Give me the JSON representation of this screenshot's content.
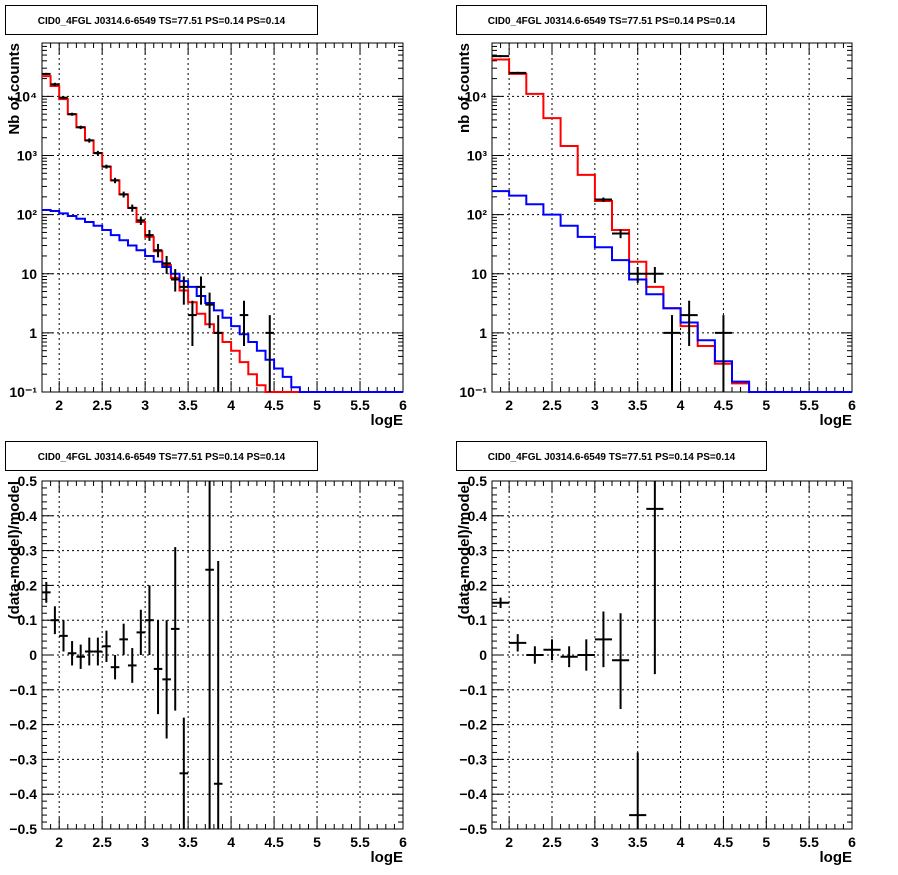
{
  "chart_data": [
    {
      "type": "step",
      "title": "CID0_4FGL J0314.6-6549 TS=77.51 PS=0.14 PS=0.14",
      "xlabel": "logE",
      "ylabel": "Nb of counts",
      "xlim": [
        1.8,
        6.0
      ],
      "ylim": [
        0.1,
        80000
      ],
      "yscale": "log",
      "grid": true,
      "xticks": [
        "2",
        "2.5",
        "3",
        "3.5",
        "4",
        "4.5",
        "5",
        "5.5",
        "6"
      ],
      "yticks": [
        "10⁻¹",
        "1",
        "10",
        "10²",
        "10³",
        "10⁴"
      ],
      "series": [
        {
          "color": "#ff0000",
          "style": "hist",
          "edges": [
            1.8,
            1.9,
            2.0,
            2.1,
            2.2,
            2.3,
            2.4,
            2.5,
            2.6,
            2.7,
            2.8,
            2.9,
            3.0,
            3.1,
            3.2,
            3.3,
            3.4,
            3.5,
            3.6,
            3.7,
            3.8,
            3.9,
            4.0,
            4.1,
            4.2,
            4.3,
            4.4,
            4.5,
            4.6,
            4.7,
            4.8,
            4.9,
            5.0,
            5.1,
            5.2,
            5.3,
            5.4,
            5.5,
            5.6,
            5.7,
            5.8,
            5.9,
            6.0
          ],
          "values": [
            22000,
            15000,
            9000,
            5000,
            3000,
            1800,
            1100,
            650,
            380,
            220,
            130,
            75,
            42,
            24,
            14,
            8.5,
            5.2,
            3.3,
            2.1,
            1.4,
            1.0,
            0.7,
            0.5,
            0.32,
            0.2,
            0.13,
            0.1,
            0.1,
            0.1,
            0.1,
            0.1,
            0.1,
            0.1,
            0.1,
            0.1,
            0.1,
            0.1,
            0.1,
            0.1,
            0.1,
            0.1,
            0.1
          ]
        },
        {
          "color": "#0000ff",
          "style": "hist",
          "edges": [
            1.8,
            1.9,
            2.0,
            2.1,
            2.2,
            2.3,
            2.4,
            2.5,
            2.6,
            2.7,
            2.8,
            2.9,
            3.0,
            3.1,
            3.2,
            3.3,
            3.4,
            3.5,
            3.6,
            3.7,
            3.8,
            3.9,
            4.0,
            4.1,
            4.2,
            4.3,
            4.4,
            4.5,
            4.6,
            4.7,
            4.8,
            4.9,
            5.0,
            5.1,
            5.2,
            5.3,
            5.4,
            5.5,
            5.6,
            5.7,
            5.8,
            5.9,
            6.0
          ],
          "values": [
            120,
            115,
            105,
            95,
            85,
            75,
            65,
            55,
            45,
            37,
            30,
            25,
            20,
            16,
            13,
            10,
            7.5,
            6,
            4.2,
            3.2,
            2.4,
            1.8,
            1.3,
            0.95,
            0.7,
            0.5,
            0.35,
            0.25,
            0.18,
            0.12,
            0.1,
            0.1,
            0.1,
            0.1,
            0.1,
            0.1,
            0.1,
            0.1,
            0.1,
            0.1,
            0.1,
            0.1
          ]
        },
        {
          "color": "#000000",
          "style": "errorbar",
          "points": [
            {
              "x": 1.85,
              "y": 24000,
              "ylo": 23000,
              "yhi": 25000
            },
            {
              "x": 1.95,
              "y": 16000,
              "ylo": 15000,
              "yhi": 17000
            },
            {
              "x": 2.05,
              "y": 9500,
              "ylo": 9000,
              "yhi": 10000
            },
            {
              "x": 2.15,
              "y": 5000,
              "ylo": 4700,
              "yhi": 5300
            },
            {
              "x": 2.25,
              "y": 3000,
              "ylo": 2800,
              "yhi": 3200
            },
            {
              "x": 2.35,
              "y": 1800,
              "ylo": 1650,
              "yhi": 1950
            },
            {
              "x": 2.45,
              "y": 1100,
              "ylo": 1000,
              "yhi": 1200
            },
            {
              "x": 2.55,
              "y": 650,
              "ylo": 600,
              "yhi": 700
            },
            {
              "x": 2.65,
              "y": 380,
              "ylo": 340,
              "yhi": 420
            },
            {
              "x": 2.75,
              "y": 220,
              "ylo": 195,
              "yhi": 245
            },
            {
              "x": 2.85,
              "y": 130,
              "ylo": 112,
              "yhi": 148
            },
            {
              "x": 2.95,
              "y": 80,
              "ylo": 67,
              "yhi": 93
            },
            {
              "x": 3.05,
              "y": 45,
              "ylo": 36,
              "yhi": 55
            },
            {
              "x": 3.15,
              "y": 25,
              "ylo": 19,
              "yhi": 32
            },
            {
              "x": 3.25,
              "y": 15,
              "ylo": 10,
              "yhi": 20
            },
            {
              "x": 3.35,
              "y": 8,
              "ylo": 5,
              "yhi": 12
            },
            {
              "x": 3.45,
              "y": 6,
              "ylo": 3,
              "yhi": 9
            },
            {
              "x": 3.55,
              "y": 2,
              "ylo": 0.6,
              "yhi": 3.5
            },
            {
              "x": 3.65,
              "y": 6,
              "ylo": 3,
              "yhi": 9
            },
            {
              "x": 3.75,
              "y": 3,
              "ylo": 1.2,
              "yhi": 4.8
            },
            {
              "x": 3.85,
              "y": 1,
              "ylo": 0.1,
              "yhi": 2
            },
            {
              "x": 4.15,
              "y": 2,
              "ylo": 0.6,
              "yhi": 3.5
            },
            {
              "x": 4.45,
              "y": 1,
              "ylo": 0.1,
              "yhi": 2
            }
          ]
        }
      ]
    },
    {
      "type": "step",
      "title": "CID0_4FGL J0314.6-6549 TS=77.51 PS=0.14 PS=0.14",
      "xlabel": "logE",
      "ylabel": "nb of counts",
      "xlim": [
        1.8,
        6.0
      ],
      "ylim": [
        0.1,
        80000
      ],
      "yscale": "log",
      "grid": true,
      "xticks": [
        "2",
        "2.5",
        "3",
        "3.5",
        "4",
        "4.5",
        "5",
        "5.5",
        "6"
      ],
      "yticks": [
        "10⁻¹",
        "1",
        "10",
        "10²",
        "10³",
        "10⁴"
      ],
      "series": [
        {
          "color": "#ff0000",
          "style": "hist",
          "edges": [
            1.8,
            2.0,
            2.2,
            2.4,
            2.6,
            2.8,
            3.0,
            3.2,
            3.4,
            3.6,
            3.8,
            4.0,
            4.2,
            4.4,
            4.6,
            4.8,
            5.0,
            5.2,
            5.4,
            5.6,
            5.8,
            6.0
          ],
          "values": [
            42000,
            24000,
            11000,
            4300,
            1450,
            470,
            170,
            55,
            16,
            6,
            2.6,
            1.3,
            0.6,
            0.3,
            0.14,
            0.1,
            0.1,
            0.1,
            0.1,
            0.1,
            0.1
          ]
        },
        {
          "color": "#0000ff",
          "style": "hist",
          "edges": [
            1.8,
            2.0,
            2.2,
            2.4,
            2.6,
            2.8,
            3.0,
            3.2,
            3.4,
            3.6,
            3.8,
            4.0,
            4.2,
            4.4,
            4.6,
            4.8,
            5.0,
            5.2,
            5.4,
            5.6,
            5.8,
            6.0
          ],
          "values": [
            250,
            210,
            150,
            100,
            65,
            42,
            28,
            17,
            8,
            4.5,
            2.6,
            1.5,
            0.75,
            0.33,
            0.15,
            0.1,
            0.1,
            0.1,
            0.1,
            0.1,
            0.1
          ]
        },
        {
          "color": "#000000",
          "style": "errorbar",
          "points": [
            {
              "x": 1.9,
              "y": 48000,
              "ylo": 46000,
              "yhi": 50000
            },
            {
              "x": 2.1,
              "y": 25000,
              "ylo": 24000,
              "yhi": 26000
            },
            {
              "x": 3.1,
              "y": 180,
              "ylo": 165,
              "yhi": 195
            },
            {
              "x": 3.3,
              "y": 48,
              "ylo": 40,
              "yhi": 56
            },
            {
              "x": 3.5,
              "y": 10,
              "ylo": 7,
              "yhi": 13
            },
            {
              "x": 3.7,
              "y": 10,
              "ylo": 7,
              "yhi": 13
            },
            {
              "x": 3.9,
              "y": 1,
              "ylo": 0.1,
              "yhi": 2
            },
            {
              "x": 4.1,
              "y": 2,
              "ylo": 0.6,
              "yhi": 3.5
            },
            {
              "x": 4.5,
              "y": 1,
              "ylo": 0.1,
              "yhi": 2
            }
          ]
        }
      ]
    },
    {
      "type": "errorbar",
      "title": "CID0_4FGL J0314.6-6549 TS=77.51 PS=0.14 PS=0.14",
      "xlabel": "logE",
      "ylabel": "(data-model)/model",
      "xlim": [
        1.8,
        6.0
      ],
      "ylim": [
        -0.5,
        0.5
      ],
      "yscale": "linear",
      "grid": true,
      "xticks": [
        "2",
        "2.5",
        "3",
        "3.5",
        "4",
        "4.5",
        "5",
        "5.5",
        "6"
      ],
      "yticks": [
        "−0.5",
        "−0.4",
        "−0.3",
        "−0.2",
        "−0.1",
        "0",
        "0.1",
        "0.2",
        "0.3",
        "0.4",
        "0.5"
      ],
      "series": [
        {
          "color": "#000000",
          "style": "errorbar",
          "xerr": 0.05,
          "points": [
            {
              "x": 1.85,
              "y": 0.18,
              "ylo": 0.15,
              "yhi": 0.21
            },
            {
              "x": 1.95,
              "y": 0.1,
              "ylo": 0.06,
              "yhi": 0.14
            },
            {
              "x": 2.05,
              "y": 0.055,
              "ylo": 0.01,
              "yhi": 0.1
            },
            {
              "x": 2.15,
              "y": 0.005,
              "ylo": -0.03,
              "yhi": 0.04
            },
            {
              "x": 2.25,
              "y": -0.005,
              "ylo": -0.04,
              "yhi": 0.03
            },
            {
              "x": 2.35,
              "y": 0.01,
              "ylo": -0.03,
              "yhi": 0.05
            },
            {
              "x": 2.45,
              "y": 0.01,
              "ylo": -0.03,
              "yhi": 0.05
            },
            {
              "x": 2.55,
              "y": 0.025,
              "ylo": -0.02,
              "yhi": 0.07
            },
            {
              "x": 2.65,
              "y": -0.035,
              "ylo": -0.07,
              "yhi": 0.0
            },
            {
              "x": 2.75,
              "y": 0.045,
              "ylo": 0.0,
              "yhi": 0.09
            },
            {
              "x": 2.85,
              "y": -0.03,
              "ylo": -0.08,
              "yhi": 0.02
            },
            {
              "x": 2.95,
              "y": 0.065,
              "ylo": 0.0,
              "yhi": 0.13
            },
            {
              "x": 3.05,
              "y": 0.1,
              "ylo": 0.0,
              "yhi": 0.2
            },
            {
              "x": 3.15,
              "y": -0.04,
              "ylo": -0.17,
              "yhi": 0.1
            },
            {
              "x": 3.25,
              "y": -0.07,
              "ylo": -0.24,
              "yhi": 0.1
            },
            {
              "x": 3.35,
              "y": 0.075,
              "ylo": -0.16,
              "yhi": 0.31
            },
            {
              "x": 3.45,
              "y": -0.34,
              "ylo": -0.5,
              "yhi": -0.18
            },
            {
              "x": 3.75,
              "y": 0.245,
              "ylo": -0.5,
              "yhi": 0.5
            },
            {
              "x": 3.85,
              "y": -0.37,
              "ylo": -0.5,
              "yhi": 0.27
            }
          ]
        }
      ]
    },
    {
      "type": "errorbar",
      "title": "CID0_4FGL J0314.6-6549 TS=77.51 PS=0.14 PS=0.14",
      "xlabel": "logE",
      "ylabel": "(data-model)/model",
      "xlim": [
        1.8,
        6.0
      ],
      "ylim": [
        -0.5,
        0.5
      ],
      "yscale": "linear",
      "grid": true,
      "xticks": [
        "2",
        "2.5",
        "3",
        "3.5",
        "4",
        "4.5",
        "5",
        "5.5",
        "6"
      ],
      "yticks": [
        "−0.5",
        "−0.4",
        "−0.3",
        "−0.2",
        "−0.1",
        "0",
        "0.1",
        "0.2",
        "0.3",
        "0.4",
        "0.5"
      ],
      "series": [
        {
          "color": "#000000",
          "style": "errorbar",
          "xerr": 0.1,
          "points": [
            {
              "x": 1.9,
              "y": 0.15,
              "ylo": 0.135,
              "yhi": 0.165
            },
            {
              "x": 2.1,
              "y": 0.035,
              "ylo": 0.01,
              "yhi": 0.06
            },
            {
              "x": 2.3,
              "y": 0.0,
              "ylo": -0.025,
              "yhi": 0.025
            },
            {
              "x": 2.5,
              "y": 0.015,
              "ylo": -0.015,
              "yhi": 0.045
            },
            {
              "x": 2.7,
              "y": -0.005,
              "ylo": -0.035,
              "yhi": 0.025
            },
            {
              "x": 2.9,
              "y": 0.0,
              "ylo": -0.045,
              "yhi": 0.045
            },
            {
              "x": 3.1,
              "y": 0.045,
              "ylo": -0.035,
              "yhi": 0.125
            },
            {
              "x": 3.3,
              "y": -0.015,
              "ylo": -0.155,
              "yhi": 0.12
            },
            {
              "x": 3.5,
              "y": -0.46,
              "ylo": -0.5,
              "yhi": -0.28
            },
            {
              "x": 3.7,
              "y": 0.42,
              "ylo": -0.055,
              "yhi": 0.5
            }
          ]
        }
      ]
    }
  ]
}
